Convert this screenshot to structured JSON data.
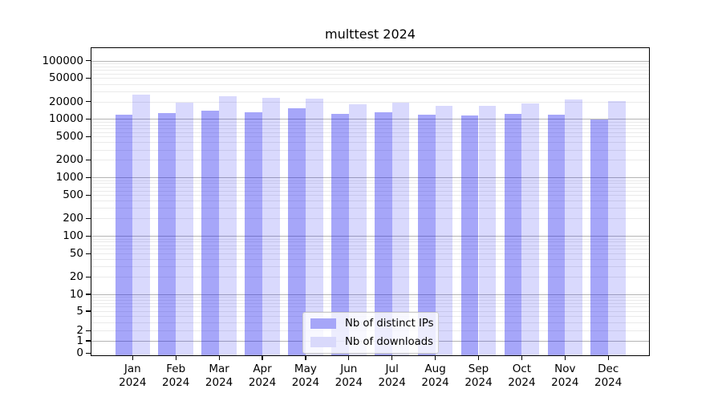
{
  "title": "multtest 2024",
  "legend": {
    "items": [
      {
        "label": "Nb of distinct IPs"
      },
      {
        "label": "Nb of downloads"
      }
    ]
  },
  "colors": {
    "ips_bar": "rgba(22,22,240,0.38)",
    "downloads_bar": "rgba(22,22,240,0.165)",
    "ips_swatch": "#a6a6f8",
    "downloads_swatch": "#d9d9fb",
    "grid_major": "#b4b4b4",
    "grid_minor": "#eaeaea",
    "axis": "#000000"
  },
  "chart_data": {
    "type": "bar",
    "title": "multtest 2024",
    "categories": [
      "Jan 2024",
      "Feb 2024",
      "Mar 2024",
      "Apr 2024",
      "May 2024",
      "Jun 2024",
      "Jul 2024",
      "Aug 2024",
      "Sep 2024",
      "Oct 2024",
      "Nov 2024",
      "Dec 2024"
    ],
    "series": [
      {
        "name": "Nb of distinct IPs",
        "values": [
          12000,
          12800,
          13900,
          13200,
          15100,
          12200,
          13200,
          11900,
          11500,
          12200,
          11900,
          9800
        ]
      },
      {
        "name": "Nb of downloads",
        "values": [
          26100,
          19200,
          24700,
          22700,
          22300,
          18100,
          19100,
          16600,
          16800,
          18600,
          21800,
          20100
        ]
      }
    ],
    "xlabel": "",
    "ylabel": "",
    "yscale": "log-like with zero baseline",
    "yticks": [
      100000,
      50000,
      20000,
      10000,
      5000,
      2000,
      1000,
      500,
      200,
      100,
      50,
      20,
      10,
      5,
      2,
      1,
      0
    ],
    "ylim": [
      0,
      200000
    ],
    "grid": true,
    "legend_position": "lower center"
  }
}
